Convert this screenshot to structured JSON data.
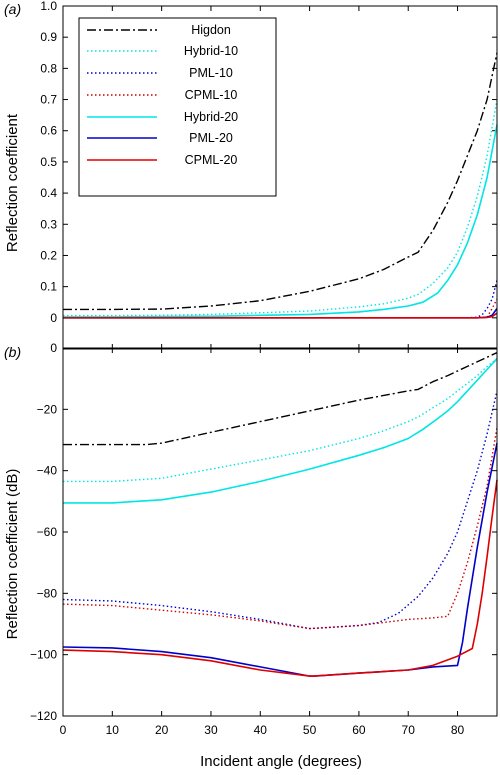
{
  "chart_data": [
    {
      "panel_label": "(a)",
      "type": "line",
      "title": "",
      "xlabel": "",
      "ylabel": "Reflection coefficient",
      "xlim": [
        0,
        88
      ],
      "ylim": [
        -0.1,
        1.0
      ],
      "xticks": [
        0,
        10,
        20,
        30,
        40,
        50,
        60,
        70,
        80
      ],
      "show_x_tick_labels": false,
      "yticks": [
        0,
        0.1,
        0.2,
        0.3,
        0.4,
        0.5,
        0.6,
        0.7,
        0.8,
        0.9,
        1.0
      ],
      "ytick_labels": [
        "0",
        "0.1",
        "0.2",
        "0.3",
        "0.4",
        "0.5",
        "0.6",
        "0.7",
        "0.8",
        "0.9",
        "1.0"
      ],
      "grid": false,
      "legend_position": "top-left",
      "series": [
        {
          "name": "Higdon",
          "color": "#000000",
          "dash": "dashdot",
          "x": [
            0,
            10,
            20,
            30,
            40,
            50,
            60,
            65,
            70,
            72,
            75,
            78,
            80,
            82,
            84,
            86,
            88
          ],
          "y": [
            0.027,
            0.027,
            0.028,
            0.038,
            0.055,
            0.085,
            0.125,
            0.155,
            0.195,
            0.21,
            0.28,
            0.37,
            0.44,
            0.52,
            0.6,
            0.7,
            0.85
          ]
        },
        {
          "name": "Hybrid-10",
          "color": "#00e5e5",
          "dash": "dotted",
          "x": [
            0,
            10,
            20,
            30,
            40,
            50,
            60,
            65,
            70,
            72,
            75,
            78,
            80,
            82,
            84,
            86,
            88
          ],
          "y": [
            0.007,
            0.007,
            0.008,
            0.011,
            0.016,
            0.022,
            0.035,
            0.045,
            0.063,
            0.075,
            0.11,
            0.16,
            0.21,
            0.29,
            0.39,
            0.52,
            0.7
          ]
        },
        {
          "name": "PML-10",
          "color": "#0000cc",
          "dash": "dotted",
          "x": [
            0,
            20,
            40,
            60,
            80,
            82,
            84,
            85,
            86,
            87,
            88
          ],
          "y": [
            0,
            0,
            0,
            0,
            0.0001,
            0.0002,
            0.002,
            0.01,
            0.03,
            0.06,
            0.12
          ]
        },
        {
          "name": "CPML-10",
          "color": "#cc0000",
          "dash": "dotted",
          "x": [
            0,
            20,
            40,
            60,
            80,
            84,
            86,
            87,
            88
          ],
          "y": [
            0,
            0,
            0,
            0,
            0,
            0,
            0.002,
            0.03,
            0.06
          ]
        },
        {
          "name": "Hybrid-20",
          "color": "#00e5e5",
          "dash": "solid",
          "x": [
            0,
            10,
            20,
            30,
            40,
            50,
            60,
            65,
            70,
            73,
            76,
            78,
            80,
            82,
            84,
            86,
            88
          ],
          "y": [
            0.003,
            0.003,
            0.004,
            0.005,
            0.008,
            0.011,
            0.019,
            0.027,
            0.038,
            0.05,
            0.08,
            0.12,
            0.17,
            0.24,
            0.33,
            0.45,
            0.62
          ]
        },
        {
          "name": "PML-20",
          "color": "#0000cc",
          "dash": "solid",
          "x": [
            0,
            20,
            40,
            60,
            80,
            84,
            86,
            87,
            88
          ],
          "y": [
            0,
            0,
            0,
            0,
            0,
            0,
            0.002,
            0.008,
            0.03
          ]
        },
        {
          "name": "CPML-20",
          "color": "#dd0000",
          "dash": "solid",
          "x": [
            0,
            20,
            40,
            60,
            80,
            84,
            86,
            87,
            88
          ],
          "y": [
            0,
            0,
            0,
            0,
            0,
            0,
            0.001,
            0.004,
            0.015
          ]
        }
      ]
    },
    {
      "panel_label": "(b)",
      "type": "line",
      "title": "",
      "xlabel": "Incident angle (degrees)",
      "ylabel": "Reflection coefficient (dB)",
      "xlim": [
        0,
        88
      ],
      "ylim": [
        -120,
        0
      ],
      "xticks": [
        0,
        10,
        20,
        30,
        40,
        50,
        60,
        70,
        80
      ],
      "xtick_labels": [
        "0",
        "10",
        "20",
        "30",
        "40",
        "50",
        "60",
        "70",
        "80"
      ],
      "show_x_tick_labels": true,
      "yticks": [
        -120,
        -100,
        -80,
        -60,
        -40,
        -20,
        0
      ],
      "ytick_labels": [
        "−120",
        "−100",
        "−80",
        "−60",
        "−40",
        "−20",
        "0"
      ],
      "grid": false,
      "legend_position": "none",
      "series": [
        {
          "name": "Higdon",
          "color": "#000000",
          "dash": "dashdot",
          "x": [
            0,
            10,
            17,
            20,
            30,
            40,
            50,
            60,
            70,
            72,
            75,
            78,
            80,
            82,
            84,
            86,
            88
          ],
          "y": [
            -31.5,
            -31.5,
            -31.5,
            -31,
            -27.5,
            -24,
            -20.5,
            -17,
            -14,
            -13.5,
            -11,
            -9,
            -7.5,
            -6,
            -4.5,
            -3,
            -1.5
          ]
        },
        {
          "name": "Hybrid-10",
          "color": "#00e5e5",
          "dash": "dotted",
          "x": [
            0,
            10,
            20,
            30,
            40,
            50,
            60,
            65,
            70,
            72,
            75,
            78,
            80,
            82,
            84,
            86,
            88
          ],
          "y": [
            -43.5,
            -43.5,
            -42.5,
            -39.5,
            -36.5,
            -33.5,
            -29.5,
            -27,
            -24,
            -22.5,
            -19.5,
            -16.5,
            -14,
            -11.5,
            -9,
            -6,
            -3.5
          ]
        },
        {
          "name": "PML-10",
          "color": "#0000cc",
          "dash": "dotted",
          "x": [
            0,
            10,
            20,
            30,
            40,
            50,
            55,
            60,
            64,
            68,
            72,
            75,
            78,
            80,
            82,
            84,
            86,
            88
          ],
          "y": [
            -82,
            -82.5,
            -84,
            -86,
            -88.5,
            -91.5,
            -91,
            -90.5,
            -89.5,
            -86.5,
            -81,
            -75,
            -67,
            -60,
            -50,
            -40,
            -28,
            -14
          ]
        },
        {
          "name": "CPML-10",
          "color": "#cc0000",
          "dash": "dotted",
          "x": [
            0,
            10,
            20,
            30,
            40,
            50,
            55,
            60,
            65,
            70,
            75,
            78,
            80,
            82,
            84,
            86,
            88
          ],
          "y": [
            -83.5,
            -84,
            -85.5,
            -87,
            -89,
            -91.5,
            -91,
            -90.5,
            -89.5,
            -88.5,
            -88,
            -87.5,
            -80,
            -70,
            -58,
            -45,
            -26
          ]
        },
        {
          "name": "Hybrid-20",
          "color": "#00e5e5",
          "dash": "solid",
          "x": [
            0,
            5,
            10,
            20,
            30,
            40,
            50,
            60,
            65,
            70,
            73,
            76,
            78,
            80,
            82,
            84,
            86,
            88
          ],
          "y": [
            -50.5,
            -50.5,
            -50.5,
            -49.5,
            -47,
            -43.5,
            -39.5,
            -35,
            -32.5,
            -29.5,
            -26.5,
            -23,
            -20.5,
            -17.5,
            -14,
            -10.5,
            -7,
            -3.5
          ]
        },
        {
          "name": "PML-20",
          "color": "#0000cc",
          "dash": "solid",
          "x": [
            0,
            10,
            20,
            30,
            40,
            50,
            51,
            60,
            70,
            75,
            80,
            81,
            82,
            84,
            86,
            88
          ],
          "y": [
            -97.5,
            -97.8,
            -99,
            -101,
            -104,
            -107,
            -107,
            -106,
            -105,
            -104,
            -103.5,
            -96,
            -85,
            -65,
            -47,
            -31
          ]
        },
        {
          "name": "CPML-20",
          "color": "#dd0000",
          "dash": "solid",
          "x": [
            0,
            10,
            20,
            30,
            40,
            50,
            51,
            60,
            70,
            75,
            80,
            83,
            84,
            85,
            86,
            87,
            88
          ],
          "y": [
            -98.5,
            -99,
            -100,
            -102,
            -105,
            -107,
            -107,
            -106,
            -105,
            -103.5,
            -100.5,
            -98,
            -90,
            -80,
            -68,
            -55,
            -43
          ]
        }
      ]
    }
  ]
}
